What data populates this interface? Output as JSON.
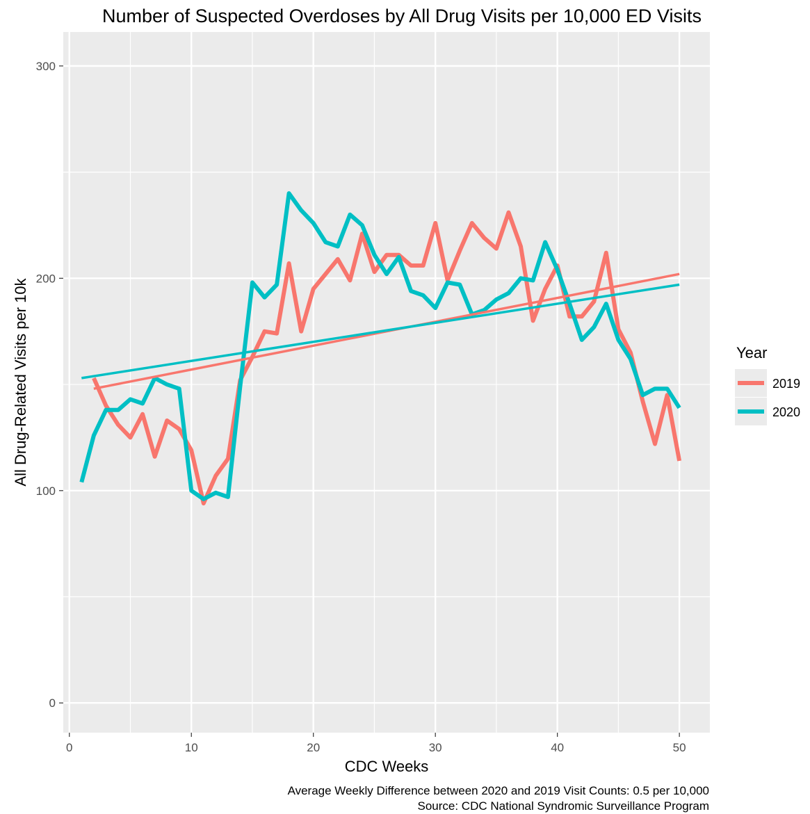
{
  "chart_data": {
    "type": "line",
    "title": "Number of Suspected Overdoses by All Drug Visits per 10,000 ED Visits",
    "xlabel": "CDC Weeks",
    "ylabel": "All Drug-Related Visits per 10k",
    "xlim": [
      -0.5,
      52.5
    ],
    "ylim": [
      -14,
      316
    ],
    "x_ticks": [
      0,
      10,
      20,
      30,
      40,
      50
    ],
    "x_tick_labels": [
      "0",
      "10",
      "20",
      "30",
      "40",
      "50"
    ],
    "y_ticks": [
      0,
      100,
      200,
      300
    ],
    "y_tick_labels": [
      "0",
      "100",
      "200",
      "300"
    ],
    "grid": true,
    "legend": {
      "title": "Year",
      "position": "right"
    },
    "series": [
      {
        "name": "2019",
        "color": "#F8766D",
        "x": [
          2,
          3,
          4,
          5,
          6,
          7,
          8,
          9,
          10,
          11,
          12,
          13,
          14,
          15,
          16,
          17,
          18,
          19,
          20,
          21,
          22,
          23,
          24,
          25,
          26,
          27,
          28,
          29,
          30,
          31,
          32,
          33,
          34,
          35,
          36,
          37,
          38,
          39,
          40,
          41,
          42,
          43,
          44,
          45,
          46,
          47,
          48,
          49,
          50
        ],
        "values": [
          153,
          140,
          131,
          125,
          136,
          116,
          133,
          129,
          119,
          94,
          107,
          115,
          152,
          163,
          175,
          174,
          207,
          175,
          195,
          202,
          209,
          199,
          221,
          203,
          211,
          211,
          206,
          206,
          226,
          199,
          213,
          226,
          219,
          214,
          231,
          215,
          180,
          195,
          206,
          182,
          182,
          189,
          212,
          176,
          165,
          142,
          122,
          145,
          114
        ],
        "trend": [
          148,
          202
        ]
      },
      {
        "name": "2020",
        "color": "#00BFC4",
        "x": [
          1,
          2,
          3,
          4,
          5,
          6,
          7,
          8,
          9,
          10,
          11,
          12,
          13,
          14,
          15,
          16,
          17,
          18,
          19,
          20,
          21,
          22,
          23,
          24,
          25,
          26,
          27,
          28,
          29,
          30,
          31,
          32,
          33,
          34,
          35,
          36,
          37,
          38,
          39,
          40,
          41,
          42,
          43,
          44,
          45,
          46,
          47,
          48,
          49,
          50
        ],
        "values": [
          104,
          126,
          138,
          138,
          143,
          141,
          153,
          150,
          148,
          100,
          96,
          99,
          97,
          149,
          198,
          191,
          197,
          240,
          232,
          226,
          217,
          215,
          230,
          225,
          211,
          202,
          210,
          194,
          192,
          186,
          198,
          197,
          183,
          185,
          190,
          193,
          200,
          199,
          217,
          204,
          188,
          171,
          177,
          188,
          171,
          162,
          145,
          148,
          148,
          139
        ],
        "trend": [
          153,
          197
        ]
      }
    ],
    "caption_lines": [
      "Average Weekly Difference between 2020 and 2019 Visit Counts: 0.5 per 10,000",
      "Source: CDC National Syndromic Surveillance Program"
    ]
  }
}
